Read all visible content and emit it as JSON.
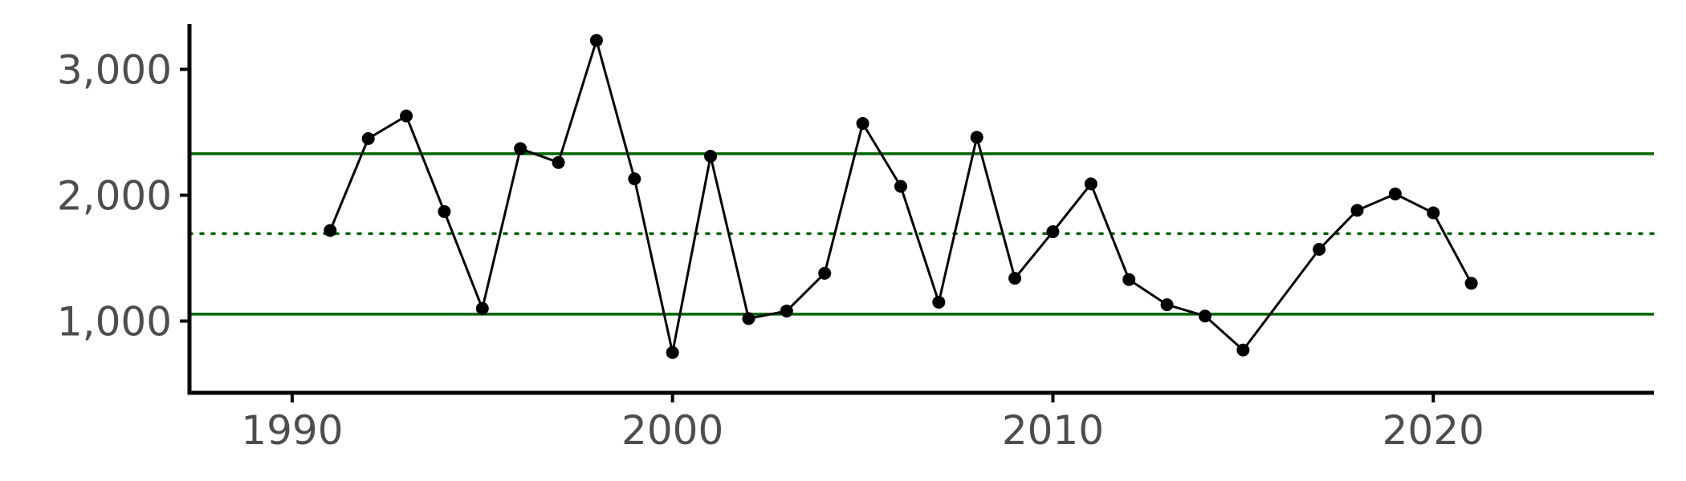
{
  "chart_data": {
    "type": "line",
    "title": "",
    "xlabel": "",
    "ylabel": "",
    "xlim": [
      1987.3,
      2025.8
    ],
    "ylim": [
      430,
      3360
    ],
    "grid": false,
    "x_ticks": [
      {
        "value": 1990,
        "label": "1990"
      },
      {
        "value": 2000,
        "label": "2000"
      },
      {
        "value": 2010,
        "label": "2010"
      },
      {
        "value": 2020,
        "label": "2020"
      }
    ],
    "y_ticks": [
      {
        "value": 1000,
        "label": "1,000"
      },
      {
        "value": 2000,
        "label": "2,000"
      },
      {
        "value": 3000,
        "label": "3,000"
      }
    ],
    "series": [
      {
        "color": "#000000",
        "points": [
          {
            "x": 1991,
            "y": 1720
          },
          {
            "x": 1992,
            "y": 2450
          },
          {
            "x": 1993,
            "y": 2630
          },
          {
            "x": 1994,
            "y": 1870
          },
          {
            "x": 1995,
            "y": 1100
          },
          {
            "x": 1996,
            "y": 2370
          },
          {
            "x": 1997,
            "y": 2260
          },
          {
            "x": 1998,
            "y": 3230
          },
          {
            "x": 1999,
            "y": 2130
          },
          {
            "x": 2000,
            "y": 750
          },
          {
            "x": 2001,
            "y": 2310
          },
          {
            "x": 2002,
            "y": 1020
          },
          {
            "x": 2003,
            "y": 1080
          },
          {
            "x": 2004,
            "y": 1380
          },
          {
            "x": 2005,
            "y": 2570
          },
          {
            "x": 2006,
            "y": 2070
          },
          {
            "x": 2007,
            "y": 1150
          },
          {
            "x": 2008,
            "y": 2460
          },
          {
            "x": 2009,
            "y": 1340
          },
          {
            "x": 2010,
            "y": 1710
          },
          {
            "x": 2011,
            "y": 2090
          },
          {
            "x": 2012,
            "y": 1330
          },
          {
            "x": 2013,
            "y": 1130
          },
          {
            "x": 2014,
            "y": 1040
          },
          {
            "x": 2015,
            "y": 770
          },
          {
            "x": 2017,
            "y": 1570
          },
          {
            "x": 2018,
            "y": 1880
          },
          {
            "x": 2019,
            "y": 2010
          },
          {
            "x": 2020,
            "y": 1860
          },
          {
            "x": 2021,
            "y": 1300
          }
        ]
      }
    ],
    "reference_lines": [
      {
        "id": "upper",
        "y": 2330,
        "style": "solid",
        "color": "#006400"
      },
      {
        "id": "mean",
        "y": 1695,
        "style": "dotted",
        "color": "#006400"
      },
      {
        "id": "lower",
        "y": 1055,
        "style": "solid",
        "color": "#006400"
      }
    ]
  }
}
